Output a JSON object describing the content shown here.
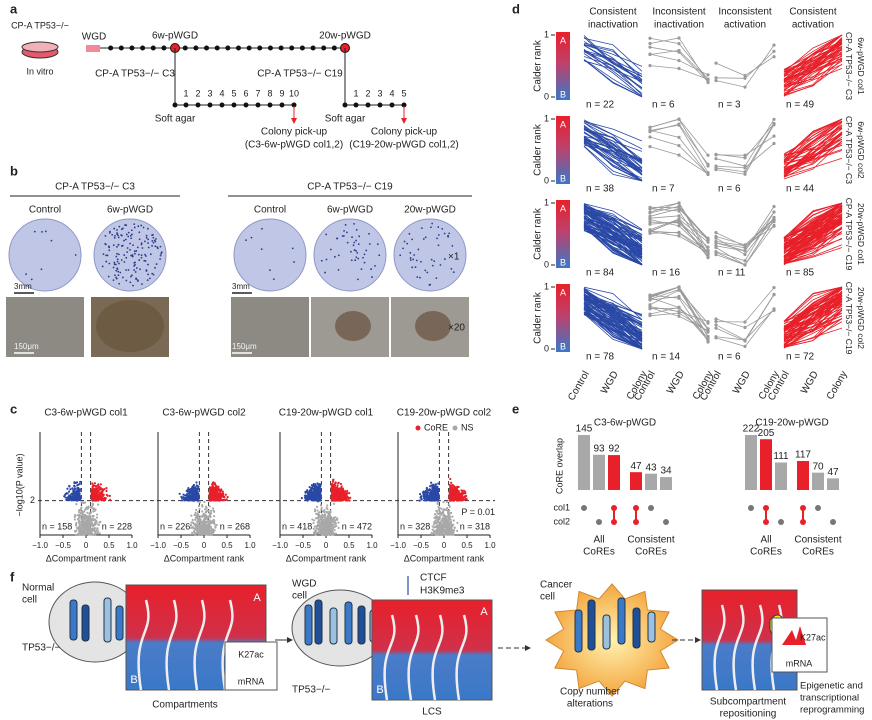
{
  "panel_a": {
    "label": "a",
    "dish_line": "CP-A TP53−/−",
    "dish_note": "In vitro",
    "wgd": "WGD",
    "timepoints": [
      "6w-pWGD",
      "20w-pWGD"
    ],
    "clones": [
      "CP-A TP53−/− C3",
      "CP-A TP53−/− C19"
    ],
    "soft_agar": "Soft agar",
    "passages_c3": [
      1,
      2,
      3,
      4,
      5,
      6,
      7,
      8,
      9,
      10
    ],
    "passages_c19": [
      1,
      2,
      3,
      4,
      5
    ],
    "pickup": "Colony pick-up",
    "pickup_c3": "(C3-6w-pWGD col1,2)",
    "pickup_c19": "(C19-20w-pWGD col1,2)"
  },
  "panel_b": {
    "label": "b",
    "groups": [
      {
        "title": "CP-A TP53−/− C3",
        "conditions": [
          "Control",
          "6w-pWGD"
        ]
      },
      {
        "title": "CP-A TP53−/− C19",
        "conditions": [
          "Control",
          "6w-pWGD",
          "20w-pWGD"
        ]
      }
    ],
    "magnifications": [
      "×1",
      "×20"
    ],
    "scale_bars": [
      "3mm",
      "150μm"
    ]
  },
  "panel_c": {
    "label": "c",
    "type": "scatter",
    "y_label": "−log10(P value)",
    "x_label": "ΔCompartment rank",
    "legend": [
      {
        "name": "CoRE",
        "color": "#e8202a"
      },
      {
        "name": "NS",
        "color": "#a8a8a8"
      }
    ],
    "down_color": "#2a49a6",
    "xlim": [
      -1,
      1
    ],
    "xticks": [
      {
        "value": -1,
        "label": "−1.0"
      },
      {
        "value": -0.5,
        "label": "−0.5"
      },
      0,
      0.5,
      {
        "value": 1,
        "label": "1.0"
      }
    ],
    "ylim": [
      0,
      6
    ],
    "yticks": [
      2
    ],
    "threshold_label": "P = 0.01",
    "plots": [
      {
        "title": "C3-6w-pWGD col1",
        "n": [
          158,
          228
        ],
        "n_labels": [
          "n = 158",
          "n = 228"
        ]
      },
      {
        "title": "C3-6w-pWGD col2",
        "n": [
          226,
          268
        ],
        "n_labels": [
          "n = 226",
          "n = 268"
        ]
      },
      {
        "title": "C19-20w-pWGD col1",
        "n": [
          418,
          472
        ],
        "n_labels": [
          "n = 418",
          "n = 472"
        ]
      },
      {
        "title": "C19-20w-pWGD col2",
        "n": [
          328,
          318
        ],
        "n_labels": [
          "n = 328",
          "n = 318"
        ]
      }
    ]
  },
  "panel_d": {
    "label": "d",
    "type": "line",
    "columns": [
      [
        "Consistent",
        "inactivation"
      ],
      [
        "Inconsistent",
        "inactivation"
      ],
      [
        "Inconsistent",
        "activation"
      ],
      [
        "Consistent",
        "activation"
      ]
    ],
    "column_colors": [
      "#2a49a6",
      "#9a9a9a",
      "#9a9a9a",
      "#e8202a"
    ],
    "y_label": "Calder rank",
    "bar_letters": [
      "A",
      "B"
    ],
    "yticks": [
      1,
      0
    ],
    "x_labels": [
      "Control",
      "WGD",
      "Colony"
    ],
    "rows": [
      {
        "label": [
          "CP-A TP53−/− C3",
          "6w-pWGD col1"
        ],
        "n": [
          22,
          6,
          3,
          49
        ],
        "n_labels": [
          "n = 22",
          "n = 6",
          "n = 3",
          "n = 49"
        ]
      },
      {
        "label": [
          "CP-A TP53−/− C3",
          "6w-pWGD col2"
        ],
        "n": [
          38,
          7,
          6,
          44
        ],
        "n_labels": [
          "n = 38",
          "n = 7",
          "n = 6",
          "n = 44"
        ]
      },
      {
        "label": [
          "CP-A TP53−/− C19",
          "20w-pWGD col1"
        ],
        "n": [
          84,
          16,
          11,
          85
        ],
        "n_labels": [
          "n = 84",
          "n = 16",
          "n = 11",
          "n = 85"
        ]
      },
      {
        "label": [
          "CP-A TP53−/− C19",
          "20w-pWGD col2"
        ],
        "n": [
          78,
          14,
          6,
          72
        ],
        "n_labels": [
          "n = 78",
          "n = 14",
          "n = 6",
          "n = 72"
        ]
      }
    ]
  },
  "panel_e": {
    "label": "e",
    "type": "bar",
    "y_label": "CoRE overlap",
    "set_labels": [
      "col1",
      "col2"
    ],
    "group_labels": [
      [
        "All",
        "CoREs"
      ],
      [
        "Consistent",
        "CoREs"
      ]
    ],
    "charts": [
      {
        "title": "C3-6w-pWGD",
        "values": [
          145,
          93,
          92,
          47,
          43,
          34
        ],
        "colors": [
          "#a8a8a8",
          "#a8a8a8",
          "#e8202a",
          "#e8202a",
          "#a8a8a8",
          "#a8a8a8"
        ],
        "membership": [
          [
            "col1"
          ],
          [
            "col2"
          ],
          [
            "col1",
            "col2"
          ],
          [
            "col1",
            "col2"
          ],
          [
            "col1"
          ],
          [
            "col2"
          ]
        ]
      },
      {
        "title": "C19-20w-pWGD",
        "values": [
          222,
          205,
          111,
          117,
          70,
          47
        ],
        "colors": [
          "#a8a8a8",
          "#e8202a",
          "#a8a8a8",
          "#e8202a",
          "#a8a8a8",
          "#a8a8a8"
        ],
        "membership": [
          [
            "col1"
          ],
          [
            "col1",
            "col2"
          ],
          [
            "col2"
          ],
          [
            "col1",
            "col2"
          ],
          [
            "col1"
          ],
          [
            "col2"
          ]
        ]
      }
    ]
  },
  "panel_f": {
    "label": "f",
    "normal_cell": [
      "Normal",
      "cell"
    ],
    "tp53": "TP53−/−",
    "compartments": [
      "A",
      "B"
    ],
    "k27ac": "K27ac",
    "mrna": "mRNA",
    "compartments_label": "Compartments",
    "wgd_cell": [
      "WGD",
      "cell"
    ],
    "marks": [
      "CTCF",
      "H3K9me3"
    ],
    "lcs": "LCS",
    "cancer_cell": [
      "Cancer",
      "cell"
    ],
    "cna": [
      "Copy number",
      "alterations"
    ],
    "repositioning": [
      "Subcompartment",
      "repositioning"
    ],
    "reprogramming": [
      "Epigenetic and",
      "transcriptional",
      "reprogramming"
    ]
  }
}
